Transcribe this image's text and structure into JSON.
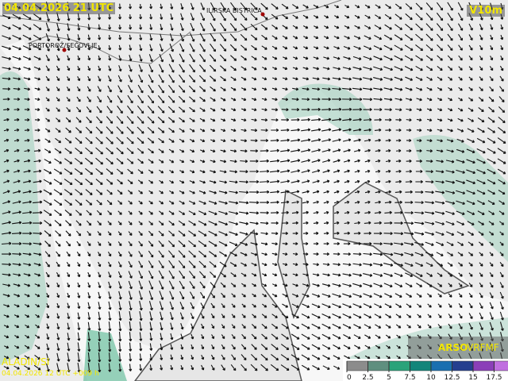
{
  "header": {
    "title": "04.04.2026 21 UTC",
    "field": "V10m"
  },
  "places": [
    "ILIRSKA BISTRICA",
    "PORTOROŽ/SEČOVLJE"
  ],
  "footer": {
    "model": "ALADIN/SI",
    "run": "04.04.2026 12 UTC +009 h",
    "brand": "ARSO",
    "product": "VRFMF"
  },
  "legend": {
    "ticks": [
      0,
      2.5,
      5,
      7.5,
      10,
      12.5,
      15,
      17.5
    ],
    "colors": [
      "#8c8c8c",
      "#5f8f7f",
      "#2aa37a",
      "#12857a",
      "#1a6fb0",
      "#253f8f",
      "#8b3fb8",
      "#c070e0"
    ]
  }
}
